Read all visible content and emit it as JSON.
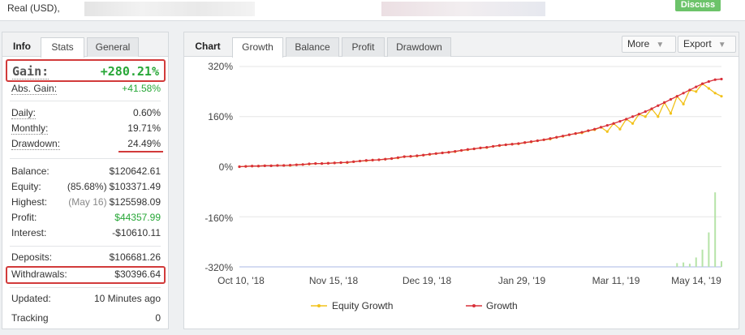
{
  "topbar": {
    "account_label": "Real (USD),",
    "discuss_label": "Discuss"
  },
  "info_panel": {
    "tabs": [
      {
        "label": "Info",
        "active": false
      },
      {
        "label": "Stats",
        "active": true
      },
      {
        "label": "General",
        "active": false
      }
    ],
    "gain": {
      "label": "Gain:",
      "value": "+280.21%"
    },
    "abs_gain": {
      "label": "Abs. Gain:",
      "value": "+41.58%"
    },
    "daily": {
      "label": "Daily:",
      "value": "0.60%"
    },
    "monthly": {
      "label": "Monthly:",
      "value": "19.71%"
    },
    "drawdown": {
      "label": "Drawdown:",
      "value": "24.49%"
    },
    "balance": {
      "label": "Balance:",
      "value": "$120642.61"
    },
    "equity": {
      "label": "Equity:",
      "prefix": "(85.68%)",
      "value": "$103371.49"
    },
    "highest": {
      "label": "Highest:",
      "prefix": "(May 16)",
      "value": "$125598.09"
    },
    "profit": {
      "label": "Profit:",
      "value": "$44357.99"
    },
    "interest": {
      "label": "Interest:",
      "value": "-$10610.11"
    },
    "deposits": {
      "label": "Deposits:",
      "value": "$106681.26"
    },
    "withdrawals": {
      "label": "Withdrawals:",
      "value": "$30396.64"
    },
    "updated": {
      "label": "Updated:",
      "value": "10 Minutes ago"
    },
    "tracking": {
      "label": "Tracking",
      "value": "0"
    }
  },
  "chart_panel": {
    "title": "Chart",
    "tabs": [
      {
        "label": "Growth",
        "active": true
      },
      {
        "label": "Balance",
        "active": false
      },
      {
        "label": "Profit",
        "active": false
      },
      {
        "label": "Drawdown",
        "active": false
      }
    ],
    "more_label": "More",
    "export_label": "Export"
  },
  "colors": {
    "growth": "#d9303a",
    "equity": "#f2c21a",
    "volume": "#b6e3a8",
    "gain_green": "#27a737",
    "highlight": "#d23b3b"
  },
  "chart_data": {
    "type": "line",
    "x_ticks": [
      "Oct 10, '18",
      "Nov 15, '18",
      "Dec 19, '18",
      "Jan 29, '19",
      "Mar 11, '19",
      "May 14, '19"
    ],
    "y_ticks": [
      "320%",
      "160%",
      "0%",
      "-160%",
      "-320%"
    ],
    "ylim": [
      -320,
      320
    ],
    "legend": [
      "Equity Growth",
      "Growth"
    ],
    "legend_position": "bottom",
    "growth_points": [
      0,
      1,
      2,
      2,
      3,
      3,
      4,
      4,
      5,
      6,
      7,
      9,
      10,
      10,
      11,
      12,
      13,
      14,
      16,
      18,
      20,
      21,
      22,
      24,
      26,
      29,
      32,
      33,
      35,
      37,
      40,
      42,
      44,
      46,
      49,
      52,
      55,
      57,
      60,
      62,
      65,
      68,
      70,
      72,
      74,
      77,
      80,
      83,
      86,
      90,
      94,
      98,
      102,
      106,
      110,
      115,
      120,
      126,
      132,
      138,
      145,
      152,
      160,
      168,
      176,
      185,
      195,
      205,
      215,
      225,
      235,
      245,
      255,
      265,
      272,
      278,
      280
    ],
    "equity_points": [
      0,
      1,
      2,
      2,
      3,
      3,
      4,
      4,
      4,
      6,
      7,
      8,
      10,
      10,
      11,
      12,
      13,
      13,
      16,
      18,
      19,
      21,
      22,
      24,
      26,
      28,
      32,
      33,
      34,
      37,
      39,
      42,
      44,
      46,
      48,
      52,
      54,
      57,
      60,
      61,
      65,
      67,
      70,
      72,
      73,
      77,
      79,
      83,
      86,
      88,
      94,
      97,
      102,
      106,
      108,
      115,
      118,
      126,
      112,
      138,
      120,
      152,
      138,
      168,
      160,
      185,
      160,
      205,
      170,
      225,
      200,
      245,
      240,
      265,
      250,
      235,
      225
    ],
    "volume_bars": [
      0,
      0,
      0,
      0,
      0,
      0,
      0,
      0,
      0,
      0,
      0,
      0,
      0,
      0,
      0,
      0,
      0,
      0,
      0,
      0,
      0,
      0,
      0,
      0,
      0,
      0,
      0,
      0,
      0,
      0,
      0,
      0,
      0,
      0,
      0,
      0,
      0,
      0,
      0,
      0,
      0,
      0,
      0,
      0,
      0,
      0,
      0,
      0,
      0,
      0,
      0,
      0,
      0,
      0,
      0,
      0,
      0,
      0,
      0,
      0,
      0,
      0,
      0,
      0,
      0,
      0,
      0,
      0,
      0,
      12,
      14,
      10,
      30,
      55,
      110,
      238,
      18
    ]
  }
}
